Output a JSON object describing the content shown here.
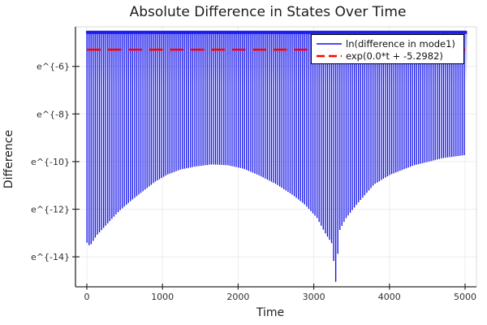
{
  "chart_data": {
    "type": "line",
    "title": "Absolute Difference in States Over Time",
    "xlabel": "Time",
    "ylabel": "Difference",
    "grid": true,
    "legend_position": "top-right",
    "x_range": [
      0,
      5015
    ],
    "y_range_ln": [
      -15.3,
      -4.3
    ],
    "x_ticks": [
      {
        "label": "0",
        "value": 0
      },
      {
        "label": "1000",
        "value": 1000
      },
      {
        "label": "2000",
        "value": 2000
      },
      {
        "label": "3000",
        "value": 3000
      },
      {
        "label": "4000",
        "value": 4000
      },
      {
        "label": "5000",
        "value": 5000
      }
    ],
    "y_ticks": [
      {
        "label": "e^{-6}",
        "ln_value": -6
      },
      {
        "label": "e^{-8}",
        "ln_value": -8
      },
      {
        "label": "e^{-10}",
        "ln_value": -10
      },
      {
        "label": "e^{-12}",
        "ln_value": -12
      },
      {
        "label": "e^{-14}",
        "ln_value": -14
      }
    ],
    "series": [
      {
        "name": "ln(difference in mode1)",
        "color": "#1212e8",
        "line_style": "solid",
        "render": "dense-oscillation",
        "top_ln": -4.55,
        "period_t": 27.4,
        "phase_t": 2,
        "envelope_ln": [
          [
            0,
            -13.4
          ],
          [
            40,
            -13.55
          ],
          [
            130,
            -13.1
          ],
          [
            260,
            -12.65
          ],
          [
            420,
            -12.1
          ],
          [
            580,
            -11.65
          ],
          [
            740,
            -11.25
          ],
          [
            900,
            -10.85
          ],
          [
            1060,
            -10.55
          ],
          [
            1250,
            -10.32
          ],
          [
            1450,
            -10.2
          ],
          [
            1650,
            -10.12
          ],
          [
            1860,
            -10.15
          ],
          [
            2075,
            -10.3
          ],
          [
            2290,
            -10.6
          ],
          [
            2505,
            -10.95
          ],
          [
            2720,
            -11.4
          ],
          [
            2880,
            -11.8
          ],
          [
            3040,
            -12.35
          ],
          [
            3150,
            -13.0
          ],
          [
            3240,
            -13.45
          ],
          [
            3290,
            -15.05
          ],
          [
            3340,
            -12.9
          ],
          [
            3420,
            -12.4
          ],
          [
            3580,
            -11.75
          ],
          [
            3800,
            -10.95
          ],
          [
            4010,
            -10.55
          ],
          [
            4330,
            -10.15
          ],
          [
            4710,
            -9.85
          ],
          [
            5015,
            -9.72
          ]
        ]
      },
      {
        "name": "exp(0.0*t + -5.2982)",
        "color": "#ff0000",
        "line_style": "dashed",
        "slope": 0.0,
        "intercept": -5.2982
      }
    ]
  },
  "layout_colors": {
    "grid": "#ececec",
    "spine_dark": "#2b2b2b",
    "spine_light": "#d9d9d9",
    "background": "#ffffff"
  }
}
